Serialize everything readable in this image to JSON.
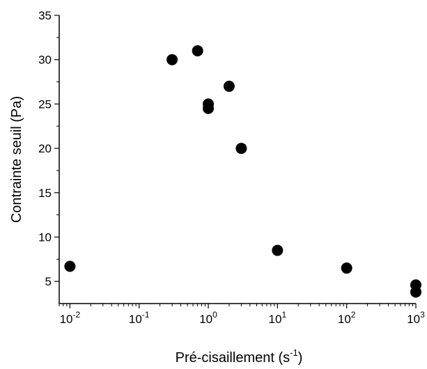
{
  "chart_data": {
    "type": "scatter",
    "title": "",
    "xlabel": "Pré-cisaillement (s",
    "xlabel_superscript": "-1",
    "xlabel_suffix": ")",
    "ylabel": "Contrainte seuil (Pa)",
    "x_scale": "log",
    "xlim": [
      0.007,
      1000
    ],
    "ylim": [
      2.5,
      35
    ],
    "x_ticks": [
      {
        "base": "10",
        "exp": "-2"
      },
      {
        "base": "10",
        "exp": "-1"
      },
      {
        "base": "10",
        "exp": "0"
      },
      {
        "base": "10",
        "exp": "1"
      },
      {
        "base": "10",
        "exp": "2"
      },
      {
        "base": "10",
        "exp": "3"
      }
    ],
    "y_ticks": [
      "5",
      "10",
      "15",
      "20",
      "25",
      "30",
      "35"
    ],
    "grid": false,
    "marker_color": "#000000",
    "series": [
      {
        "x": [
          0.01,
          0.3,
          0.7,
          1,
          1,
          2,
          3,
          10,
          100,
          1000,
          1000
        ],
        "y": [
          6.7,
          30.0,
          31.0,
          25.0,
          24.5,
          27.0,
          20.0,
          8.5,
          6.5,
          4.6,
          3.8
        ]
      }
    ]
  }
}
